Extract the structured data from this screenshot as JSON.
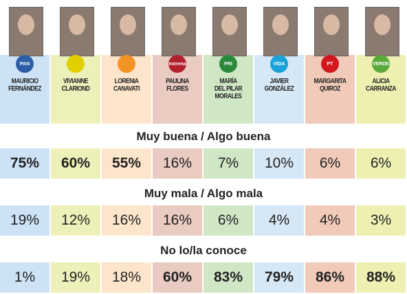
{
  "candidates": [
    {
      "name": [
        "MAURICIO",
        "FERNÁNDEZ"
      ],
      "party": "PAN"
    },
    {
      "name": [
        "VIVIANNE",
        "CLARIOND"
      ]
    },
    {
      "name": [
        "LORENIA",
        "CANAVATI"
      ]
    },
    {
      "name": [
        "PAULINA",
        "FLORES"
      ],
      "party": "morena"
    },
    {
      "name": [
        "MARÍA",
        "DEL PILAR",
        "MORALES"
      ],
      "party": "PRI"
    },
    {
      "name": [
        "JAVIER",
        "GONZÁLEZ"
      ],
      "party": "VIDA"
    },
    {
      "name": [
        "MARGARITA",
        "QUIROZ"
      ],
      "party": "PT"
    },
    {
      "name": [
        "ALICIA",
        "CARRANZA"
      ],
      "party": "VERDE"
    }
  ],
  "sections": [
    {
      "title": "Muy buena / Algo buena",
      "values": [
        "75%",
        "60%",
        "55%",
        "16%",
        "7%",
        "10%",
        "6%",
        "6%"
      ]
    },
    {
      "title": "Muy mala / Algo mala",
      "values": [
        "19%",
        "12%",
        "16%",
        "16%",
        "6%",
        "4%",
        "4%",
        "3%"
      ]
    },
    {
      "title": "No lo/la conoce",
      "values": [
        "1%",
        "19%",
        "18%",
        "60%",
        "83%",
        "79%",
        "86%",
        "88%"
      ]
    }
  ]
}
